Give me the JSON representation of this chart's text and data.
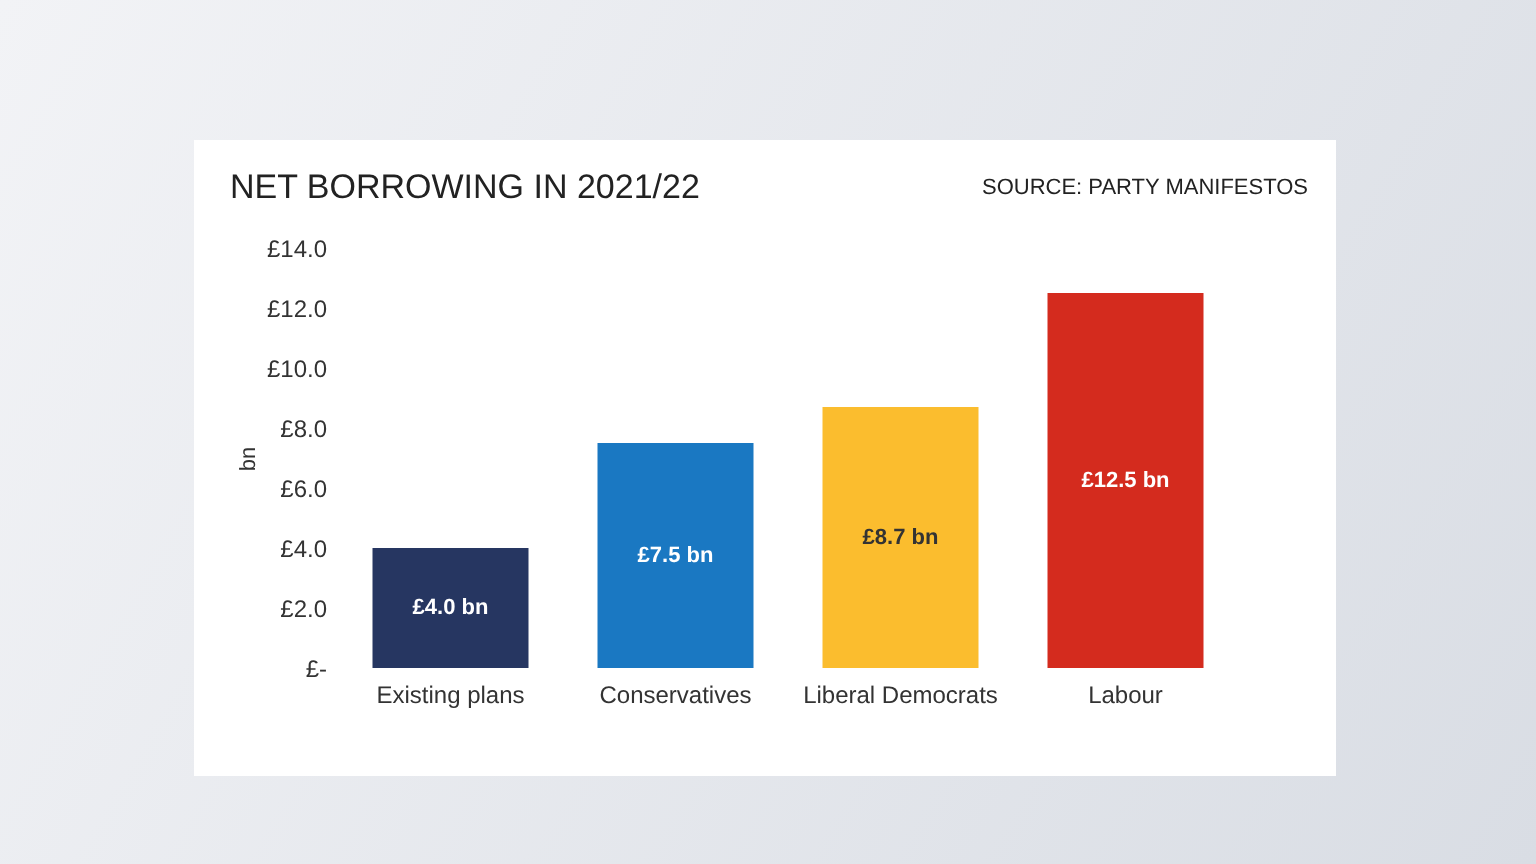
{
  "chart_data": {
    "type": "bar",
    "title": "NET BORROWING IN 2021/22",
    "ylabel": "bn",
    "annotations": [
      "SOURCE: PARTY MANIFESTOS"
    ],
    "categories": [
      "Existing plans",
      "Conservatives",
      "Liberal Democrats",
      "Labour"
    ],
    "values": [
      4.0,
      7.5,
      8.7,
      12.5
    ],
    "colors": [
      "#263661",
      "#1a78c2",
      "#fbbd2e",
      "#d42b1e"
    ],
    "value_labels": [
      "£4.0 bn",
      "£7.5 bn",
      "£8.7 bn",
      "£12.5 bn"
    ],
    "ylim": [
      0,
      14
    ],
    "yticks": [
      {
        "value": 0,
        "label": "£-"
      },
      {
        "value": 2,
        "label": "£2.0"
      },
      {
        "value": 4,
        "label": "£4.0"
      },
      {
        "value": 6,
        "label": "£6.0"
      },
      {
        "value": 8,
        "label": "£8.0"
      },
      {
        "value": 10,
        "label": "£10.0"
      },
      {
        "value": 12,
        "label": "£12.0"
      },
      {
        "value": 14,
        "label": "£14.0"
      }
    ],
    "grid": false
  }
}
